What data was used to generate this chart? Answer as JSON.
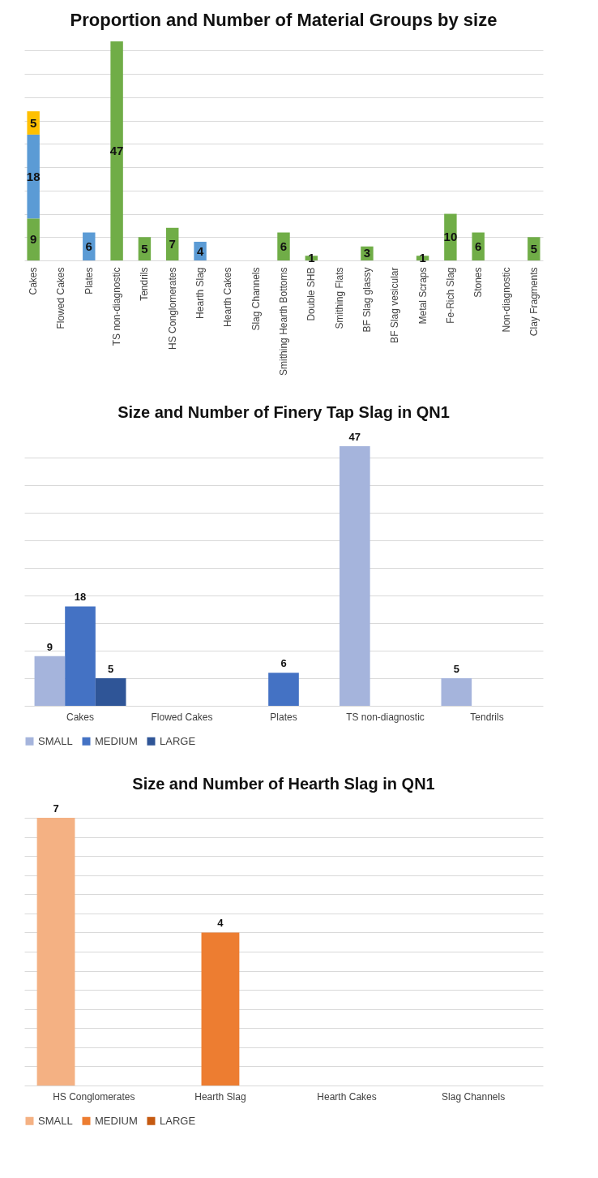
{
  "chart_data": [
    {
      "type": "bar",
      "title": "Proportion and Number of Material Groups by size",
      "stacked": true,
      "data_labels": true,
      "grid": "y",
      "tick_labels": "x",
      "categories": [
        "Cakes",
        "Flowed Cakes",
        "Plates",
        "TS non-diagnostic",
        "Tendrils",
        "HS Conglomerates",
        "Hearth Slag",
        "Hearth Cakes",
        "Slag Channels",
        "Smithing Hearth Bottoms",
        "Double SHB",
        "Smithing Flats",
        "BF Slag glassy",
        "BF Slag vesicular",
        "Metal Scraps",
        "Fe-Rich Slag",
        "Stones",
        "Non-diagnostic",
        "Clay Fragments"
      ],
      "series": [
        {
          "color": "#70ad47",
          "values": [
            9,
            null,
            null,
            47,
            5,
            7,
            null,
            null,
            null,
            6,
            1,
            null,
            3,
            null,
            1,
            10,
            6,
            null,
            5
          ]
        },
        {
          "color": "#5b9bd5",
          "values": [
            18,
            null,
            6,
            null,
            null,
            null,
            4,
            null,
            null,
            null,
            null,
            null,
            null,
            null,
            null,
            null,
            null,
            null,
            null
          ]
        },
        {
          "color": "#ffc000",
          "values": [
            5,
            null,
            null,
            null,
            null,
            null,
            null,
            null,
            null,
            null,
            null,
            null,
            null,
            null,
            null,
            null,
            null,
            null,
            null
          ]
        }
      ]
    },
    {
      "type": "bar",
      "title": "Size and Number of Finery Tap Slag in QN1",
      "data_labels": true,
      "grid": "y",
      "tick_labels": "x",
      "legend": "bottom",
      "categories": [
        "Cakes",
        "Flowed Cakes",
        "Plates",
        "TS non-diagnostic",
        "Tendrils"
      ],
      "series": [
        {
          "name": "SMALL",
          "color": "#a5b4dc",
          "values": [
            9,
            null,
            null,
            47,
            5
          ]
        },
        {
          "name": "MEDIUM",
          "color": "#4472c4",
          "values": [
            18,
            null,
            6,
            null,
            null
          ]
        },
        {
          "name": "LARGE",
          "color": "#2f5597",
          "values": [
            5,
            null,
            null,
            null,
            null
          ]
        }
      ]
    },
    {
      "type": "bar",
      "title": "Size and Number of Hearth Slag in QN1",
      "data_labels": true,
      "grid": "y",
      "tick_labels": "x",
      "legend": "bottom",
      "categories": [
        "HS Conglomerates",
        "Hearth Slag",
        "Hearth Cakes",
        "Slag Channels"
      ],
      "series": [
        {
          "name": "SMALL",
          "color": "#f4b183",
          "values": [
            7,
            null,
            null,
            null
          ]
        },
        {
          "name": "MEDIUM",
          "color": "#ed7d31",
          "values": [
            null,
            4,
            null,
            null
          ]
        },
        {
          "name": "LARGE",
          "color": "#c55a11",
          "values": [
            null,
            null,
            null,
            null
          ]
        }
      ]
    }
  ]
}
